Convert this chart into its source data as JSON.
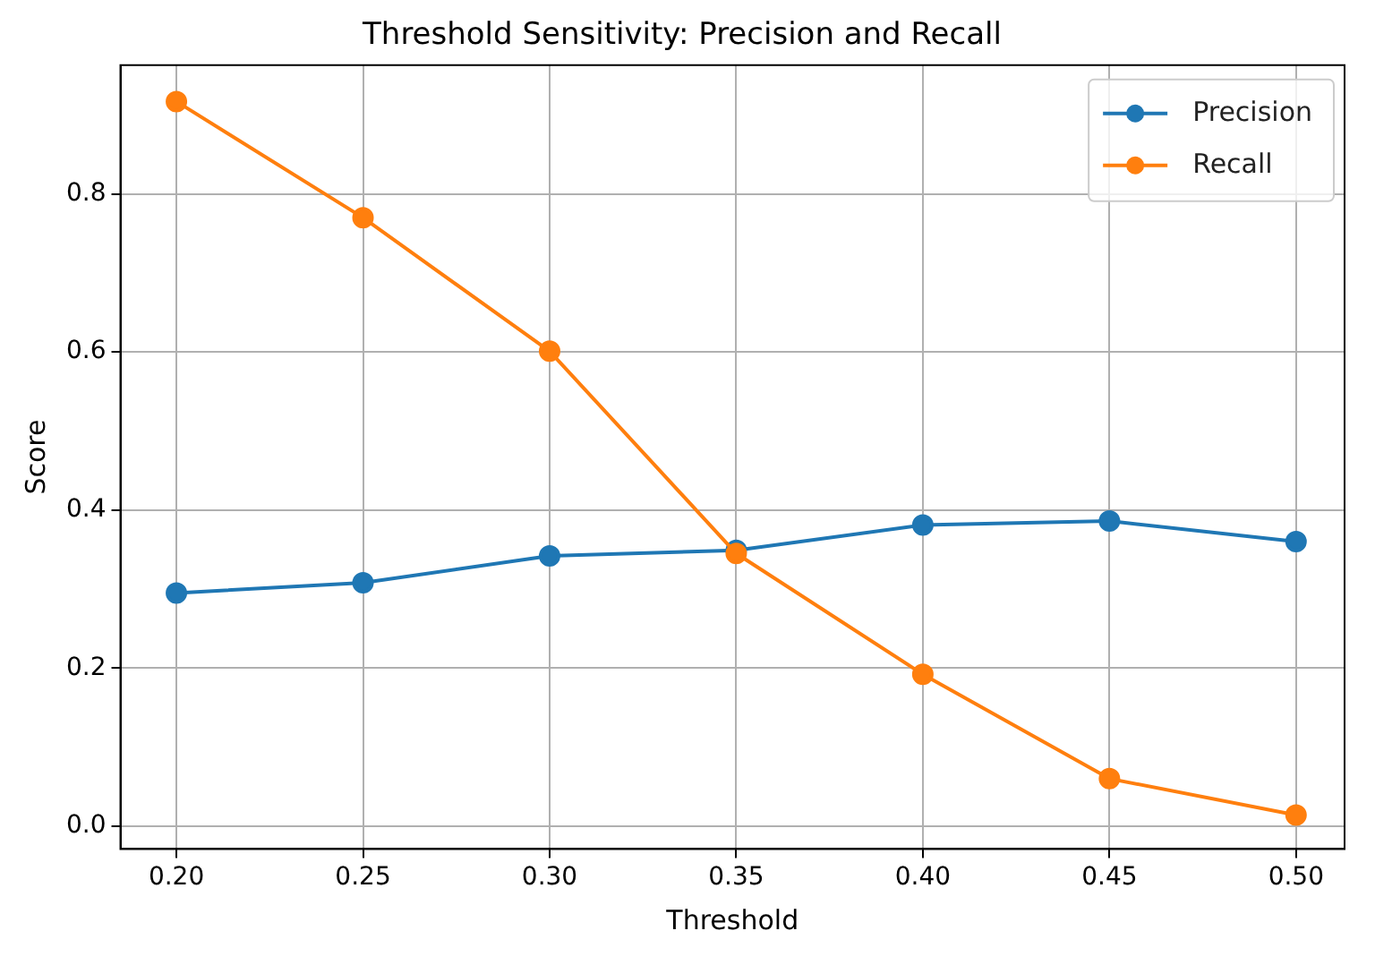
{
  "chart_data": {
    "type": "line",
    "title": "Threshold Sensitivity: Precision and Recall",
    "xlabel": "Threshold",
    "ylabel": "Score",
    "x": [
      0.2,
      0.25,
      0.3,
      0.35,
      0.4,
      0.45,
      0.5
    ],
    "series": [
      {
        "name": "Precision",
        "color": "#1f77b4",
        "values": [
          0.295,
          0.308,
          0.342,
          0.349,
          0.381,
          0.386,
          0.36
        ]
      },
      {
        "name": "Recall",
        "color": "#ff7f0e",
        "values": [
          0.917,
          0.77,
          0.601,
          0.345,
          0.192,
          0.06,
          0.014
        ]
      }
    ],
    "xlim": [
      0.185,
      0.513
    ],
    "xticks": [
      {
        "value": 0.2,
        "label": "0.20"
      },
      {
        "value": 0.25,
        "label": "0.25"
      },
      {
        "value": 0.3,
        "label": "0.30"
      },
      {
        "value": 0.35,
        "label": "0.35"
      },
      {
        "value": 0.4,
        "label": "0.40"
      },
      {
        "value": 0.45,
        "label": "0.45"
      },
      {
        "value": 0.5,
        "label": "0.50"
      }
    ],
    "ylim": [
      -0.029,
      0.963
    ],
    "yticks": [
      {
        "value": 0,
        "label": "0.0"
      },
      {
        "value": 0.2,
        "label": "0.2"
      },
      {
        "value": 0.4,
        "label": "0.4"
      },
      {
        "value": 0.6,
        "label": "0.6"
      },
      {
        "value": 0.8,
        "label": "0.8"
      }
    ],
    "grid": true,
    "legend": "top right",
    "marker": "circle",
    "line_style": "solid"
  }
}
